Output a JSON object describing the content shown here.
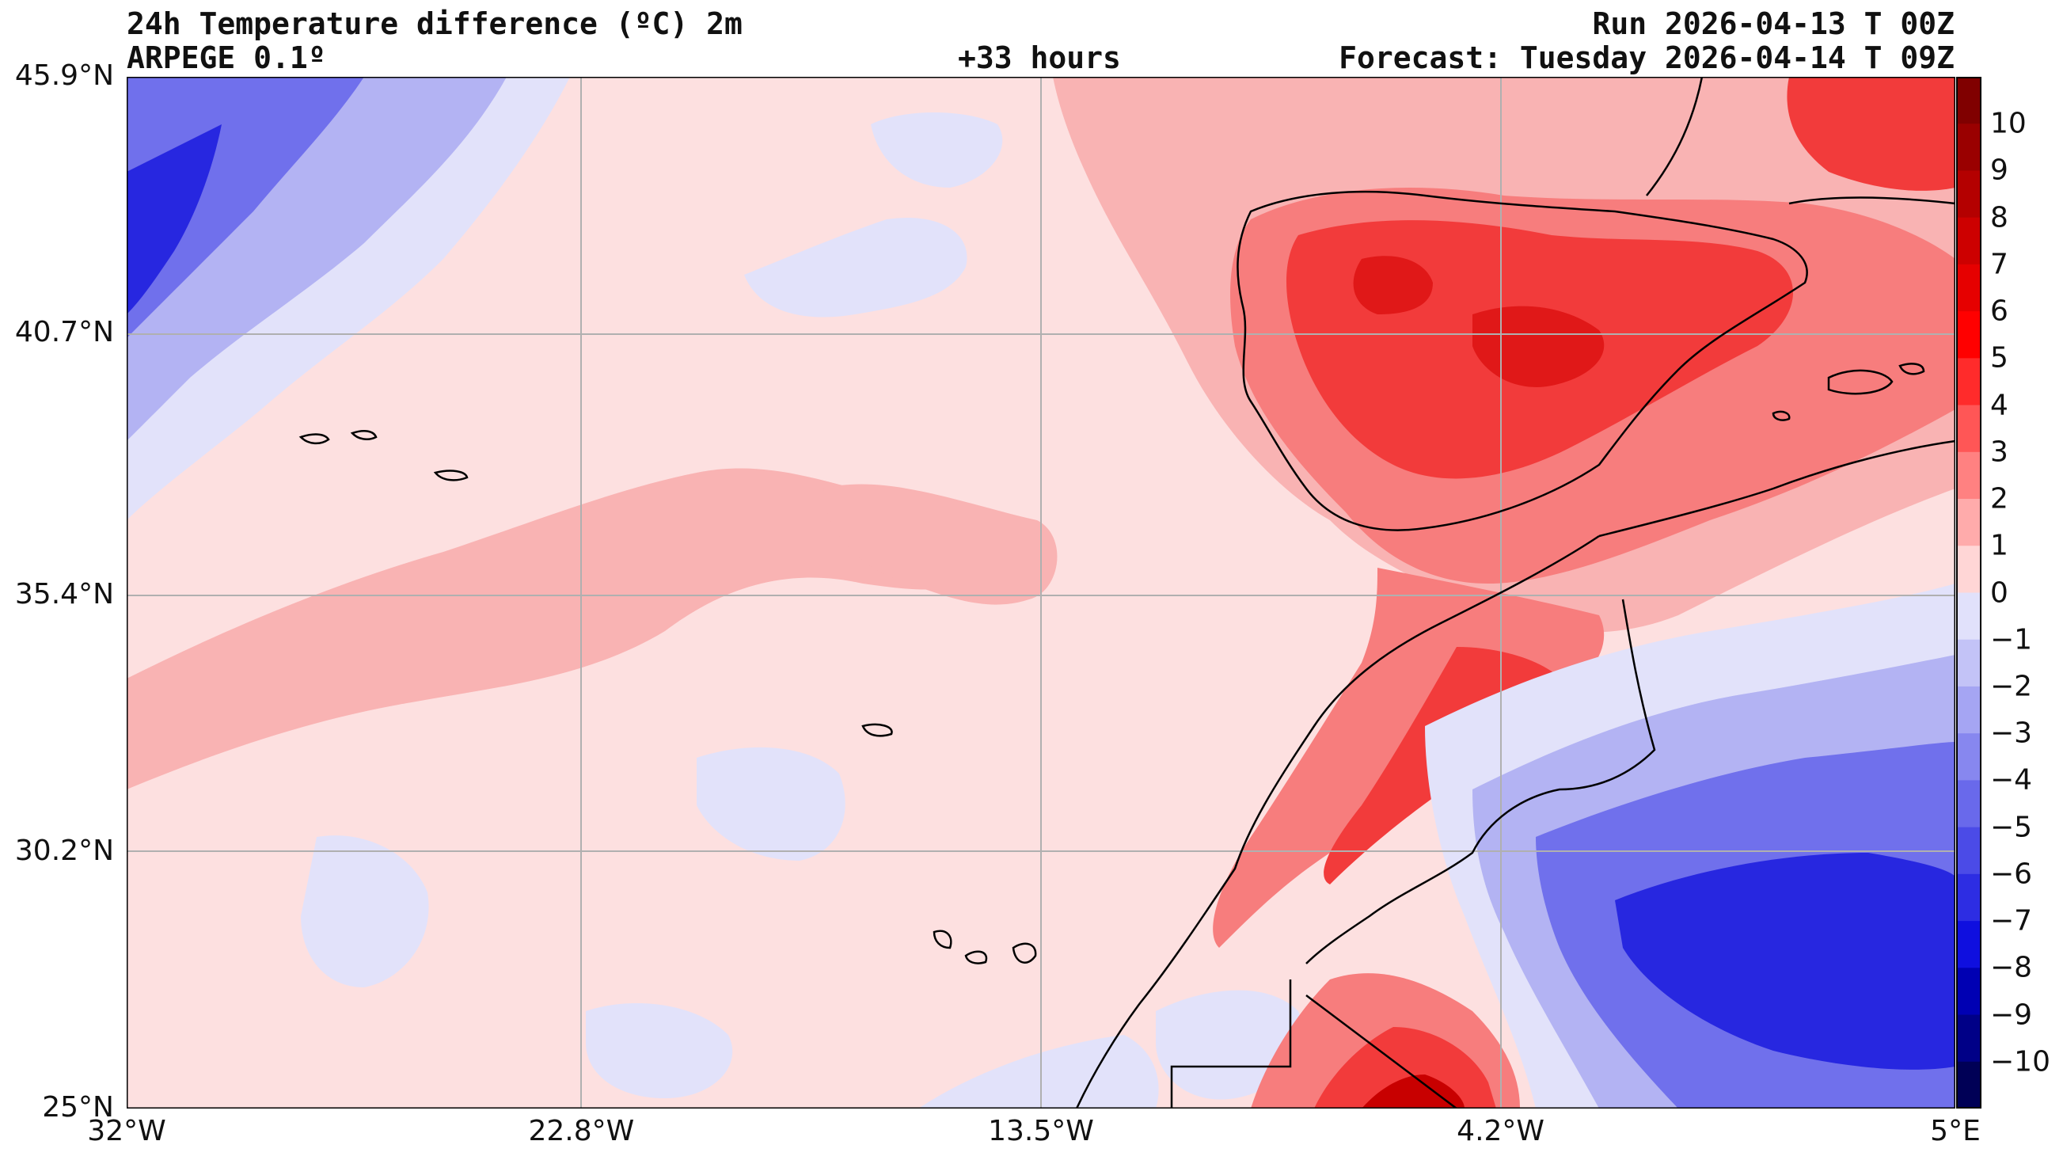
{
  "header": {
    "title": "24h Temperature difference (ºC) 2m",
    "model": "ARPEGE 0.1º",
    "lead_time": "+33 hours",
    "run": "Run 2026-04-13 T 00Z",
    "forecast": "Forecast: Tuesday 2026-04-14 T 09Z"
  },
  "axes": {
    "lat_labels": [
      "45.9°N",
      "40.7°N",
      "35.4°N",
      "30.2°N",
      "25°N"
    ],
    "lat_values": [
      45.9,
      40.7,
      35.4,
      30.2,
      25.0
    ],
    "lon_labels": [
      "32°W",
      "22.8°W",
      "13.5°W",
      "4.2°W",
      "5°E"
    ],
    "lon_values": [
      -32,
      -22.8,
      -13.5,
      -4.2,
      5
    ],
    "lat_range": [
      25.0,
      45.9
    ],
    "lon_range": [
      -32,
      5
    ]
  },
  "colorbar": {
    "labels": [
      "10",
      "9",
      "8",
      "7",
      "6",
      "5",
      "4",
      "3",
      "2",
      "1",
      "0",
      "−1",
      "−2",
      "−3",
      "−4",
      "−5",
      "−6",
      "−7",
      "−8",
      "−9",
      "−10"
    ],
    "values": [
      10,
      9,
      8,
      7,
      6,
      5,
      4,
      3,
      2,
      1,
      0,
      -1,
      -2,
      -3,
      -4,
      -5,
      -6,
      -7,
      -8,
      -9,
      -10
    ],
    "range": [
      -11,
      11
    ],
    "colors_top_to_bottom": [
      "#800000",
      "#9a0000",
      "#b40000",
      "#cd0000",
      "#e60000",
      "#ff0000",
      "#ff2b2b",
      "#ff5656",
      "#ff8181",
      "#ffabab",
      "#ffd6d6",
      "#e1e1fb",
      "#c3c3f7",
      "#a5a5f3",
      "#8787ef",
      "#6969eb",
      "#4b4be7",
      "#2d2de3",
      "#0f0fdf",
      "#0000b3",
      "#000087",
      "#000056"
    ]
  },
  "colors": {
    "ocean_base": "#fde0e0",
    "warm_light": "#f9b3b3",
    "warm_mid": "#f77d7d",
    "warm_strong": "#f23b3b",
    "warm_peak": "#c80000",
    "cool_light": "#e2e2fa",
    "cool_mid": "#b3b3f3",
    "cool_strong": "#7070ec",
    "cool_deep": "#2727e0",
    "coast": "#000000",
    "grid": "#b0b0b0"
  }
}
